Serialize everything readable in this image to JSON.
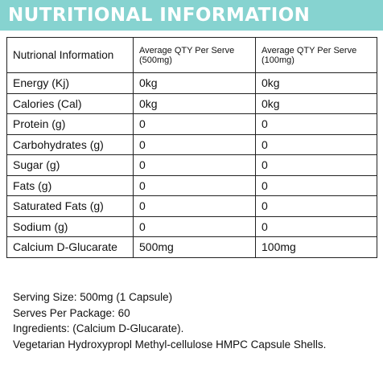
{
  "banner": {
    "title": "NUTRITIONAL INFORMATION",
    "color": "#86d3d0"
  },
  "table": {
    "headers": [
      "Nutrional Information",
      "Average QTY Per Serve (500mg)",
      "Average QTY Per Serve (100mg)"
    ],
    "rows": [
      [
        "Energy (Kj)",
        "0kg",
        "0kg"
      ],
      [
        "Calories (Cal)",
        "0kg",
        "0kg"
      ],
      [
        "Protein (g)",
        "0",
        "0"
      ],
      [
        "Carbohydrates (g)",
        "0",
        "0"
      ],
      [
        "Sugar (g)",
        "0",
        "0"
      ],
      [
        "Fats (g)",
        "0",
        "0"
      ],
      [
        "Saturated Fats (g)",
        "0",
        "0"
      ],
      [
        "Sodium (g)",
        "0",
        "0"
      ],
      [
        "Calcium D-Glucarate",
        "500mg",
        "100mg"
      ]
    ]
  },
  "notes": {
    "serving_size": "Serving Size: 500mg (1 Capsule)",
    "serves_per_package": "Serves Per Package: 60",
    "ingredients": "Ingredients: (Calcium D-Glucarate).",
    "capsule": "Vegetarian Hydroxypropl Methyl-cellulose HMPC Capsule Shells."
  }
}
